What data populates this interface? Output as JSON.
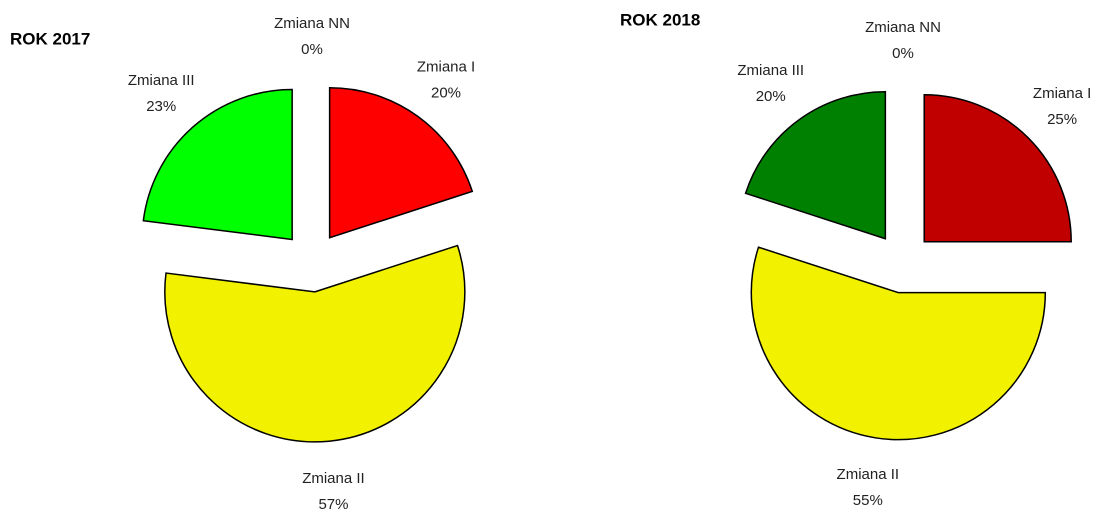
{
  "chart_data": [
    {
      "type": "pie",
      "title": "ROK 2017",
      "categories": [
        "Zmiana I",
        "Zmiana II",
        "Zmiana III",
        "Zmiana NN"
      ],
      "values": [
        20,
        57,
        23,
        0
      ],
      "value_labels": [
        "20%",
        "57%",
        "23%",
        "0%"
      ],
      "colors": [
        "#ff0000",
        "#f2f200",
        "#00ff00",
        "#0000ff"
      ]
    },
    {
      "type": "pie",
      "title": "ROK 2018",
      "categories": [
        "Zmiana I",
        "Zmiana II",
        "Zmiana III",
        "Zmiana NN"
      ],
      "values": [
        25,
        55,
        20,
        0
      ],
      "value_labels": [
        "25%",
        "55%",
        "20%",
        "0%"
      ],
      "colors": [
        "#c00000",
        "#f2f200",
        "#008000",
        "#0000ff"
      ]
    }
  ]
}
